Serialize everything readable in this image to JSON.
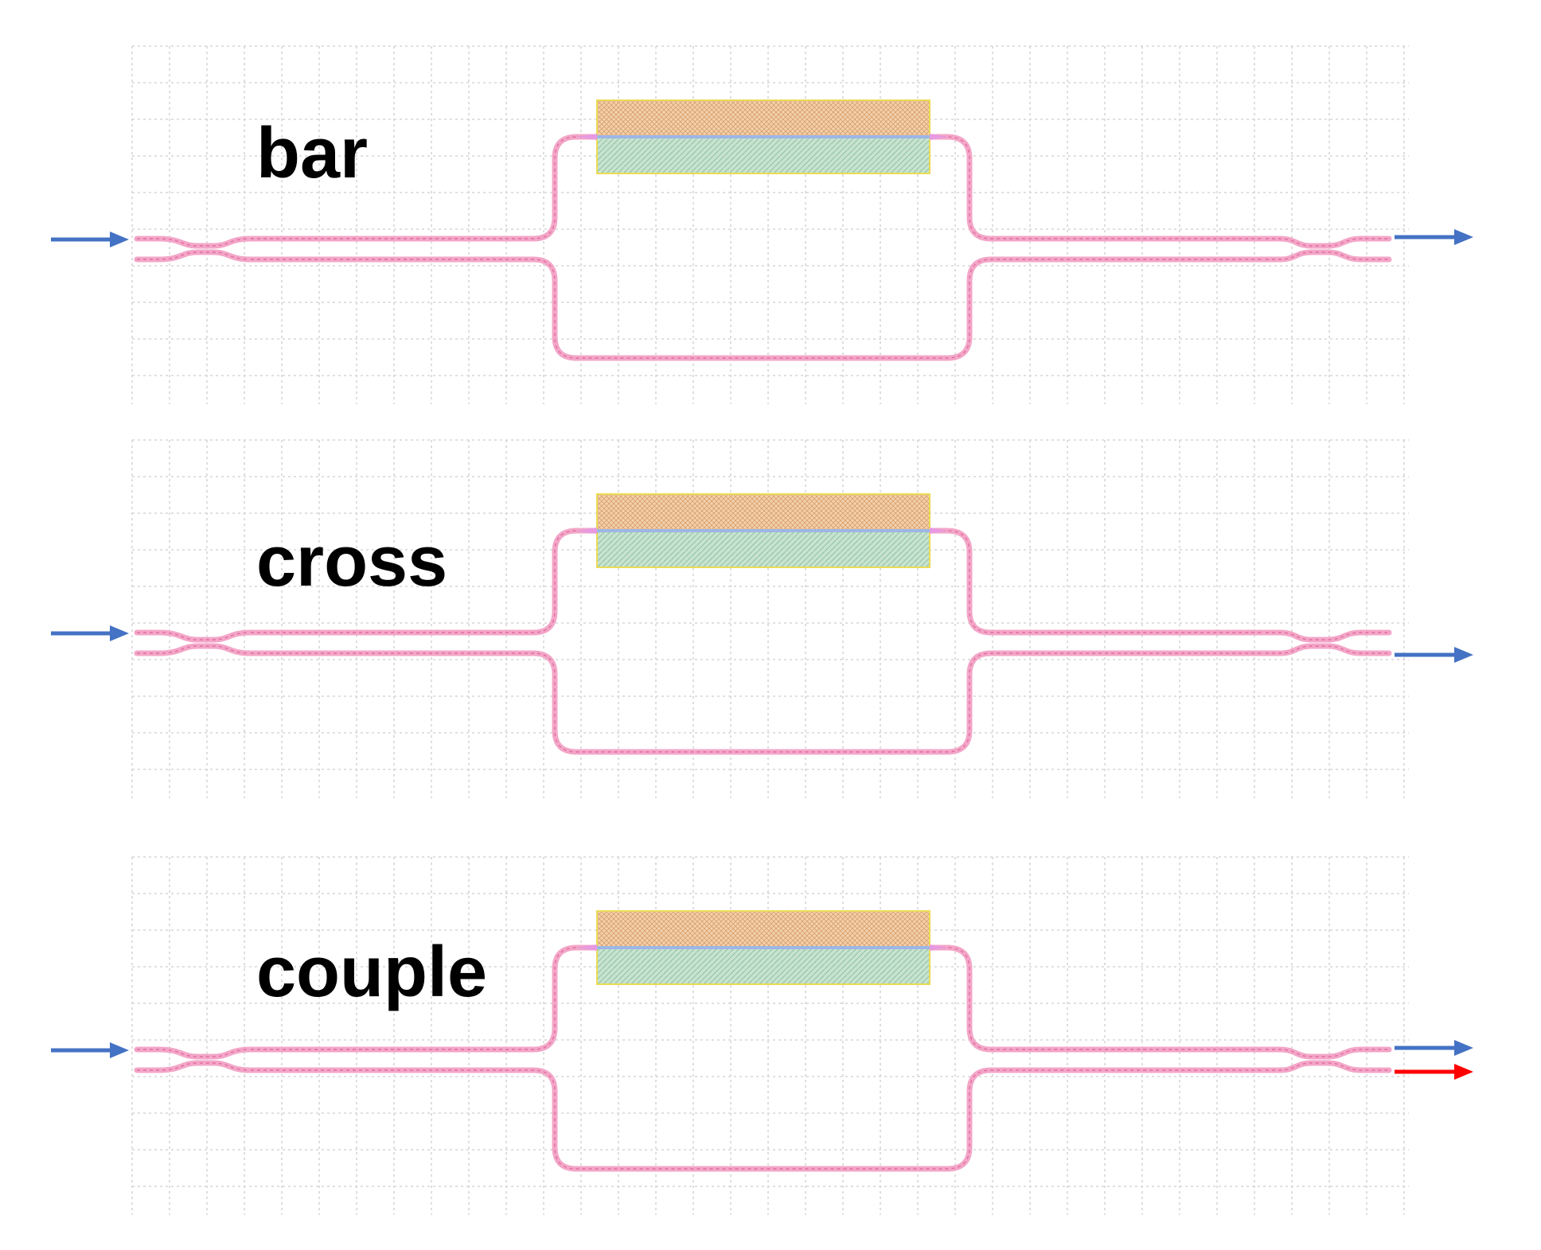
{
  "colors": {
    "background": "#ffffff",
    "grid": "#d6d6d6",
    "waveguide": "#f3a6c8",
    "waveguide_core": "#e06e9e",
    "heater_top_fill": "#f2d2ad",
    "heater_bottom_fill": "#c8e3d0",
    "heater_outline": "#eadb55",
    "heater_center_line": "#9db6e6",
    "arrow_primary": "#4472c4",
    "arrow_secondary": "#ff0000",
    "label": "#000000"
  },
  "panels": [
    {
      "label": "bar",
      "input_arrows": [
        {
          "port": "upper",
          "color_key": "arrow_primary"
        }
      ],
      "output_arrows": [
        {
          "port": "upper",
          "color_key": "arrow_primary"
        }
      ]
    },
    {
      "label": "cross",
      "input_arrows": [
        {
          "port": "upper",
          "color_key": "arrow_primary"
        }
      ],
      "output_arrows": [
        {
          "port": "lower",
          "color_key": "arrow_primary"
        }
      ]
    },
    {
      "label": "couple",
      "input_arrows": [
        {
          "port": "upper",
          "color_key": "arrow_primary"
        }
      ],
      "output_arrows": [
        {
          "port": "upper",
          "color_key": "arrow_primary"
        },
        {
          "port": "lower",
          "color_key": "arrow_secondary"
        }
      ]
    }
  ]
}
